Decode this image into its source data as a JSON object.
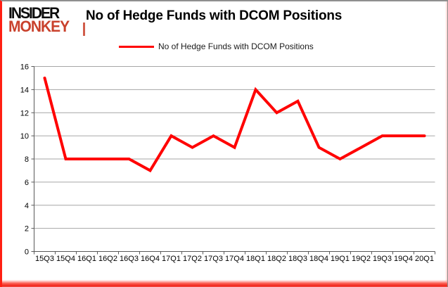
{
  "logo": {
    "line1": "INSIDER",
    "line2": "MONKEY"
  },
  "header": {
    "title": "No of Hedge Funds with DCOM Positions"
  },
  "legend": {
    "label": "No of Hedge Funds with DCOM Positions"
  },
  "colors": {
    "series_line": "#ff0000",
    "grid_line": "#a6a6a6",
    "axis_line": "#595959",
    "tick_label": "#000000",
    "title_text": "#000000",
    "logo_black": "#0d0d0d",
    "logo_red": "#c9412c",
    "frame_red": "#ff1f13",
    "frame_gray": "#8f8f8f",
    "background": "#ffffff"
  },
  "chart_data": {
    "type": "line",
    "title": "No of Hedge Funds with DCOM Positions",
    "categories": [
      "15Q3",
      "15Q4",
      "16Q1",
      "16Q2",
      "16Q3",
      "16Q4",
      "17Q1",
      "17Q2",
      "17Q3",
      "17Q4",
      "18Q1",
      "18Q2",
      "18Q3",
      "18Q4",
      "19Q1",
      "19Q2",
      "19Q3",
      "19Q4",
      "20Q1"
    ],
    "values": [
      15,
      8,
      8,
      8,
      8,
      7,
      10,
      9,
      10,
      9,
      14,
      12,
      13,
      9,
      8,
      9,
      10,
      10,
      10
    ],
    "series_name": "No of Hedge Funds with DCOM Positions",
    "xlabel": "",
    "ylabel": "",
    "ylim": [
      0,
      16
    ],
    "yticks": [
      0,
      2,
      4,
      6,
      8,
      10,
      12,
      14,
      16
    ],
    "grid": true,
    "legend_position": "top-center",
    "line_color": "#ff0000"
  }
}
